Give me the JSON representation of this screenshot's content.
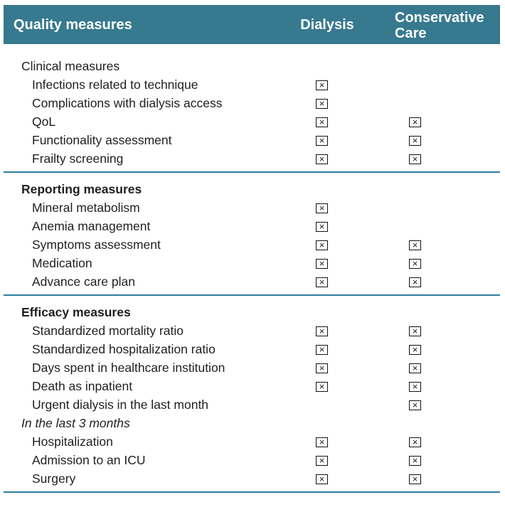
{
  "header": {
    "col_quality": "Quality measures",
    "col_dialysis": "Dialysis",
    "col_conservative": "Conservative Care"
  },
  "icons": {
    "checked_box_glyph": "×"
  },
  "colors": {
    "header_bg": "#37798f",
    "divider": "#2d7da0",
    "header_text": "#ffffff",
    "body_text": "#1f1f1f"
  },
  "sections": [
    {
      "heading": "Clinical measures",
      "heading_style": "plain",
      "rows": [
        {
          "label": "Infections related to technique",
          "dialysis": true,
          "conservative": false
        },
        {
          "label": "Complications with dialysis access",
          "dialysis": true,
          "conservative": false
        },
        {
          "label": "QoL",
          "dialysis": true,
          "conservative": true
        },
        {
          "label": "Functionality assessment",
          "dialysis": true,
          "conservative": true
        },
        {
          "label": "Frailty screening",
          "dialysis": true,
          "conservative": true
        }
      ]
    },
    {
      "heading": "Reporting measures",
      "heading_style": "bold",
      "rows": [
        {
          "label": "Mineral metabolism",
          "dialysis": true,
          "conservative": false
        },
        {
          "label": "Anemia management",
          "dialysis": true,
          "conservative": false
        },
        {
          "label": "Symptoms assessment",
          "dialysis": true,
          "conservative": true
        },
        {
          "label": "Medication",
          "dialysis": true,
          "conservative": true
        },
        {
          "label": "Advance care plan",
          "dialysis": true,
          "conservative": true
        }
      ]
    },
    {
      "heading": "Efficacy measures",
      "heading_style": "bold",
      "rows": [
        {
          "label": "Standardized mortality ratio",
          "dialysis": true,
          "conservative": true
        },
        {
          "label": "Standardized hospitalization ratio",
          "dialysis": true,
          "conservative": true
        },
        {
          "label": "Days spent in healthcare institution",
          "dialysis": true,
          "conservative": true
        },
        {
          "label": "Death as inpatient",
          "dialysis": true,
          "conservative": true
        },
        {
          "label": "Urgent dialysis in the last month",
          "dialysis": false,
          "conservative": true
        }
      ],
      "subheading": "In the last 3 months",
      "subrows": [
        {
          "label": "Hospitalization",
          "dialysis": true,
          "conservative": true
        },
        {
          "label": "Admission to an ICU",
          "dialysis": true,
          "conservative": true
        },
        {
          "label": "Surgery",
          "dialysis": true,
          "conservative": true
        }
      ]
    }
  ]
}
